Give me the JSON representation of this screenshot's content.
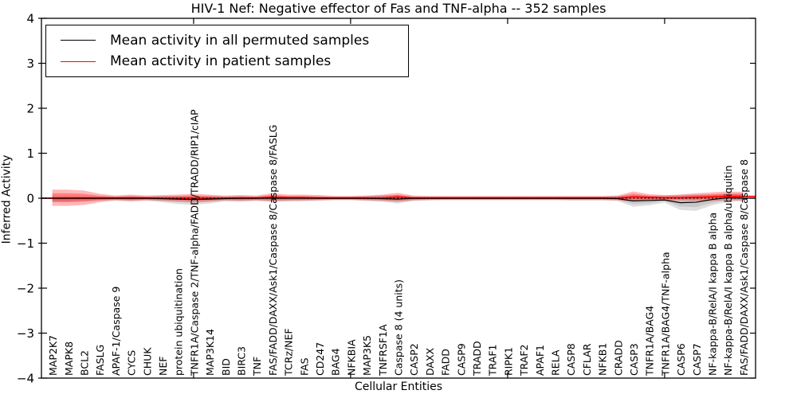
{
  "chart_data": {
    "type": "line",
    "title": "HIV-1 Nef: Negative effector of Fas and TNF-alpha -- 352 samples",
    "xlabel": "Cellular Entities",
    "ylabel": "Inferred Activity",
    "ylim": [
      -4,
      4
    ],
    "ytick_labels": [
      "4",
      "3",
      "2",
      "1",
      "0",
      "−1",
      "−2",
      "−3",
      "−4"
    ],
    "ytick_values": [
      4,
      3,
      2,
      1,
      0,
      -1,
      -2,
      -3,
      -4
    ],
    "xtick_positions": [
      10,
      20,
      30,
      40
    ],
    "grid": false,
    "legend_position": "upper left",
    "zero_reference_line": 0,
    "categories": [
      "MAP2K7",
      "MAPK8",
      "BCL2",
      "FASLG",
      "APAF-1/Caspase 9",
      "CYCS",
      "CHUK",
      "NEF",
      "protein ubiquitination",
      "TNFR1A/Caspase 2/TNF-alpha/FADD/TRADD/RIP1/cIAP",
      "MAP3K14",
      "BID",
      "BIRC3",
      "TNF",
      "FAS/FADD/DAXX/Ask1/Caspase 8/Caspase 8/FASLG",
      "TCRz/NEF",
      "FAS",
      "CD247",
      "BAG4",
      "NFKBIA",
      "MAP3K5",
      "TNFRSF1A",
      "Caspase 8 (4 units)",
      "CASP2",
      "DAXX",
      "FADD",
      "CASP9",
      "TRADD",
      "TRAF1",
      "RIPK1",
      "TRAF2",
      "APAF1",
      "RELA",
      "CASP8",
      "CFLAR",
      "NFKB1",
      "CRADD",
      "CASP3",
      "TNFR1A/BAG4",
      "TNFR1A/BAG4/TNF-alpha",
      "CASP6",
      "CASP7",
      "NF-kappa-B/RelA/I kappa B alpha",
      "NF-kappa-B/RelA/I kappa B alpha/ubiquitin",
      "FAS/FADD/DAXX/Ask1/Caspase 8/Caspase 8"
    ],
    "series": [
      {
        "name": "Mean activity in all permuted samples",
        "color": "#000000",
        "style": "solid",
        "values": [
          0,
          0,
          0,
          0,
          0,
          0,
          0,
          -0.01,
          -0.02,
          -0.03,
          -0.02,
          -0.01,
          0,
          0,
          0,
          0,
          0,
          0,
          0,
          0,
          0,
          -0.01,
          -0.02,
          0,
          0,
          0,
          0,
          0,
          0,
          0,
          0,
          0,
          0,
          0,
          0,
          0,
          -0.01,
          -0.06,
          -0.05,
          -0.04,
          -0.1,
          -0.09,
          -0.03,
          0.01,
          0
        ]
      },
      {
        "name": "Mean activity in patient samples",
        "color": "#ff0000",
        "style": "solid",
        "values": [
          0,
          0,
          0,
          0,
          0,
          0,
          0,
          0,
          0,
          0,
          0,
          0,
          0,
          0,
          0.02,
          0.01,
          0.01,
          0,
          0,
          0,
          0,
          0,
          0.03,
          0,
          0,
          0,
          0,
          0,
          0,
          0,
          0,
          0,
          0,
          0,
          0,
          0,
          0,
          0.03,
          0.02,
          0.01,
          0.01,
          0.02,
          0.03,
          0.04,
          0.04
        ]
      }
    ],
    "bands": [
      {
        "name": "Permuted samples activity range",
        "color": "#000000",
        "low": [
          -0.07,
          -0.07,
          -0.06,
          -0.05,
          -0.05,
          -0.06,
          -0.05,
          -0.09,
          -0.13,
          -0.15,
          -0.12,
          -0.07,
          -0.08,
          -0.06,
          -0.08,
          -0.07,
          -0.06,
          -0.05,
          -0.04,
          -0.04,
          -0.06,
          -0.08,
          -0.12,
          -0.06,
          -0.05,
          -0.04,
          -0.04,
          -0.04,
          -0.04,
          -0.04,
          -0.04,
          -0.04,
          -0.04,
          -0.05,
          -0.05,
          -0.05,
          -0.06,
          -0.19,
          -0.16,
          -0.1,
          -0.26,
          -0.28,
          -0.16,
          -0.08,
          -0.07
        ],
        "high": [
          0.05,
          0.05,
          0.05,
          0.04,
          0.04,
          0.05,
          0.04,
          0.05,
          0.05,
          0.06,
          0.05,
          0.04,
          0.05,
          0.04,
          0.06,
          0.05,
          0.05,
          0.04,
          0.04,
          0.04,
          0.05,
          0.06,
          0.07,
          0.04,
          0.04,
          0.04,
          0.04,
          0.04,
          0.04,
          0.04,
          0.04,
          0.04,
          0.04,
          0.04,
          0.04,
          0.04,
          0.05,
          0.06,
          0.06,
          0.06,
          0.08,
          0.08,
          0.08,
          0.09,
          0.1
        ]
      },
      {
        "name": "Patient samples activity range",
        "color": "#ff0000",
        "low": [
          -0.17,
          -0.17,
          -0.15,
          -0.09,
          -0.05,
          -0.07,
          -0.05,
          -0.06,
          -0.07,
          -0.09,
          -0.07,
          -0.05,
          -0.06,
          -0.05,
          -0.07,
          -0.06,
          -0.06,
          -0.05,
          -0.04,
          -0.04,
          -0.05,
          -0.06,
          -0.08,
          -0.05,
          -0.04,
          -0.04,
          -0.04,
          -0.04,
          -0.04,
          -0.04,
          -0.04,
          -0.04,
          -0.04,
          -0.04,
          -0.04,
          -0.04,
          -0.05,
          -0.07,
          -0.06,
          -0.05,
          -0.05,
          -0.06,
          -0.06,
          -0.05,
          -0.05
        ],
        "high": [
          0.19,
          0.19,
          0.17,
          0.1,
          0.06,
          0.08,
          0.06,
          0.07,
          0.08,
          0.1,
          0.08,
          0.06,
          0.07,
          0.06,
          0.11,
          0.08,
          0.08,
          0.07,
          0.05,
          0.05,
          0.06,
          0.08,
          0.12,
          0.06,
          0.05,
          0.05,
          0.05,
          0.05,
          0.05,
          0.05,
          0.05,
          0.05,
          0.05,
          0.05,
          0.05,
          0.05,
          0.06,
          0.15,
          0.09,
          0.07,
          0.08,
          0.11,
          0.13,
          0.15,
          0.14
        ]
      }
    ]
  }
}
